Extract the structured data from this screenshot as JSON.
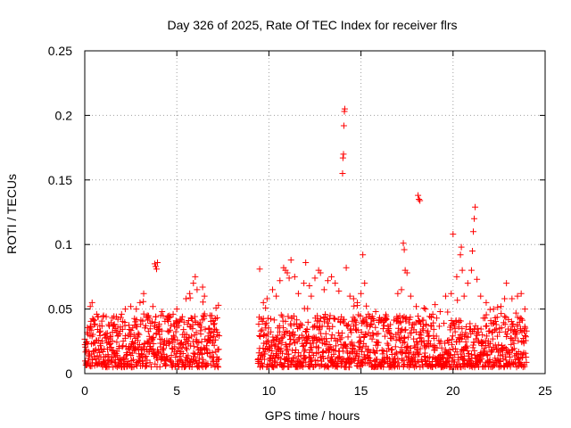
{
  "chart_data": {
    "type": "scatter",
    "title": "Day 326 of 2025, Rate Of TEC Index for receiver flrs",
    "xlabel": "GPS time / hours",
    "ylabel": "ROTI / TECUs",
    "xlim": [
      0,
      25
    ],
    "ylim": [
      0,
      0.25
    ],
    "xticks": [
      0,
      5,
      10,
      15,
      20,
      25
    ],
    "xtick_labels": [
      "0",
      "5",
      "10",
      "15",
      "20",
      "25"
    ],
    "yticks": [
      0,
      0.05,
      0.1,
      0.15,
      0.2,
      0.25
    ],
    "ytick_labels": [
      "0",
      "0.05",
      "0.1",
      "0.15",
      "0.2",
      "0.25"
    ],
    "grid": true,
    "marker": "+",
    "color": "#ff0000",
    "data_gap_hours": [
      7.3,
      9.4
    ],
    "series": [
      {
        "name": "ROTI",
        "points": [
          [
            0.1,
            0.018
          ],
          [
            0.3,
            0.052
          ],
          [
            0.4,
            0.055
          ],
          [
            0.5,
            0.041
          ],
          [
            0.8,
            0.032
          ],
          [
            1.0,
            0.044
          ],
          [
            1.3,
            0.038
          ],
          [
            1.5,
            0.043
          ],
          [
            1.8,
            0.036
          ],
          [
            2.0,
            0.046
          ],
          [
            2.2,
            0.05
          ],
          [
            2.5,
            0.052
          ],
          [
            2.8,
            0.05
          ],
          [
            3.0,
            0.055
          ],
          [
            3.2,
            0.062
          ],
          [
            3.4,
            0.045
          ],
          [
            3.7,
            0.052
          ],
          [
            3.8,
            0.085
          ],
          [
            3.85,
            0.083
          ],
          [
            3.9,
            0.081
          ],
          [
            3.95,
            0.086
          ],
          [
            4.2,
            0.048
          ],
          [
            4.5,
            0.044
          ],
          [
            4.8,
            0.046
          ],
          [
            5.0,
            0.05
          ],
          [
            5.3,
            0.044
          ],
          [
            5.5,
            0.058
          ],
          [
            5.7,
            0.062
          ],
          [
            5.9,
            0.07
          ],
          [
            6.0,
            0.075
          ],
          [
            6.1,
            0.065
          ],
          [
            6.4,
            0.067
          ],
          [
            6.5,
            0.06
          ],
          [
            6.8,
            0.045
          ],
          [
            7.0,
            0.038
          ],
          [
            7.2,
            0.03
          ],
          [
            9.5,
            0.081
          ],
          [
            9.7,
            0.055
          ],
          [
            9.9,
            0.058
          ],
          [
            10.2,
            0.065
          ],
          [
            10.4,
            0.06
          ],
          [
            10.6,
            0.072
          ],
          [
            10.8,
            0.082
          ],
          [
            10.9,
            0.08
          ],
          [
            11.0,
            0.078
          ],
          [
            11.1,
            0.074
          ],
          [
            11.2,
            0.088
          ],
          [
            11.4,
            0.075
          ],
          [
            11.6,
            0.062
          ],
          [
            11.9,
            0.07
          ],
          [
            12.0,
            0.086
          ],
          [
            12.2,
            0.068
          ],
          [
            12.3,
            0.06
          ],
          [
            12.5,
            0.074
          ],
          [
            12.7,
            0.08
          ],
          [
            12.8,
            0.078
          ],
          [
            13.0,
            0.065
          ],
          [
            13.2,
            0.072
          ],
          [
            13.4,
            0.075
          ],
          [
            13.6,
            0.07
          ],
          [
            13.8,
            0.064
          ],
          [
            14.0,
            0.155
          ],
          [
            14.02,
            0.167
          ],
          [
            14.05,
            0.17
          ],
          [
            14.07,
            0.192
          ],
          [
            14.1,
            0.203
          ],
          [
            14.12,
            0.205
          ],
          [
            14.2,
            0.082
          ],
          [
            14.4,
            0.06
          ],
          [
            14.6,
            0.058
          ],
          [
            14.8,
            0.055
          ],
          [
            15.0,
            0.062
          ],
          [
            15.1,
            0.092
          ],
          [
            15.2,
            0.07
          ],
          [
            15.4,
            0.046
          ],
          [
            15.8,
            0.048
          ],
          [
            16.2,
            0.04
          ],
          [
            16.6,
            0.038
          ],
          [
            17.0,
            0.062
          ],
          [
            17.2,
            0.065
          ],
          [
            17.3,
            0.101
          ],
          [
            17.35,
            0.096
          ],
          [
            17.4,
            0.08
          ],
          [
            17.5,
            0.078
          ],
          [
            17.7,
            0.06
          ],
          [
            18.0,
            0.052
          ],
          [
            18.1,
            0.138
          ],
          [
            18.15,
            0.135
          ],
          [
            18.2,
            0.134
          ],
          [
            18.5,
            0.05
          ],
          [
            18.9,
            0.046
          ],
          [
            19.3,
            0.048
          ],
          [
            19.6,
            0.06
          ],
          [
            19.9,
            0.062
          ],
          [
            20.0,
            0.108
          ],
          [
            20.2,
            0.075
          ],
          [
            20.4,
            0.092
          ],
          [
            20.45,
            0.098
          ],
          [
            20.5,
            0.08
          ],
          [
            20.6,
            0.06
          ],
          [
            20.8,
            0.07
          ],
          [
            21.0,
            0.08
          ],
          [
            21.05,
            0.095
          ],
          [
            21.1,
            0.11
          ],
          [
            21.15,
            0.12
          ],
          [
            21.2,
            0.129
          ],
          [
            21.3,
            0.073
          ],
          [
            21.5,
            0.06
          ],
          [
            21.8,
            0.055
          ],
          [
            22.2,
            0.05
          ],
          [
            22.6,
            0.052
          ],
          [
            22.8,
            0.058
          ],
          [
            22.9,
            0.07
          ],
          [
            23.2,
            0.058
          ],
          [
            23.5,
            0.06
          ],
          [
            23.7,
            0.062
          ],
          [
            23.9,
            0.05
          ]
        ],
        "dense_band": [
          [
            0.0,
            7.3
          ],
          [
            9.4,
            24.0
          ]
        ],
        "dense_band_range": [
          0.005,
          0.045
        ]
      }
    ]
  }
}
